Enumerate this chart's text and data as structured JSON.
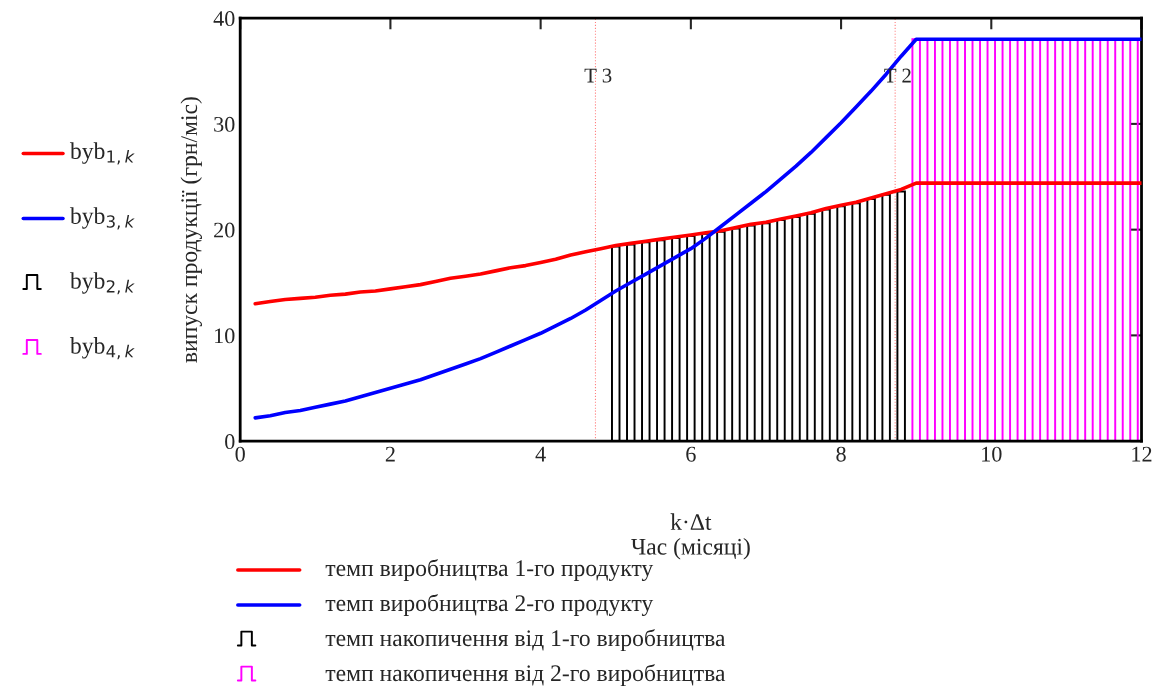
{
  "chart_data": {
    "type": "line",
    "xlabel": "k·Δt\nЧас (місяці)",
    "ylabel": "випуск продукції (грн/міс)",
    "xlim": [
      0,
      12
    ],
    "xticks": [
      0,
      2,
      4,
      6,
      8,
      10,
      12
    ],
    "ylim": [
      0,
      40
    ],
    "yticks": [
      0,
      10,
      20,
      30,
      40
    ],
    "grid": false,
    "legend": "left",
    "marker": "none",
    "line_style": "solid",
    "series": [
      {
        "name": "byb$_{1,k}$",
        "color": "#ff0000",
        "x": [
          0.2,
          0.4,
          0.6,
          0.8,
          1.0,
          1.2,
          1.4,
          1.6,
          1.8,
          2.0,
          2.2,
          2.4,
          2.6,
          2.8,
          3.0,
          3.2,
          3.4,
          3.6,
          3.8,
          4.0,
          4.2,
          4.4,
          4.6,
          4.8,
          5.0,
          5.2,
          5.4,
          5.6,
          5.8,
          6.0,
          6.2,
          6.4,
          6.6,
          6.8,
          7.0,
          7.2,
          7.4,
          7.6,
          7.8,
          8.0,
          8.2,
          8.4,
          8.6,
          8.8,
          9.0,
          12.0
        ],
        "values": [
          13.0,
          13.2,
          13.4,
          13.5,
          13.6,
          13.8,
          13.9,
          14.1,
          14.2,
          14.4,
          14.6,
          14.8,
          15.1,
          15.4,
          15.6,
          15.8,
          16.1,
          16.4,
          16.6,
          16.9,
          17.2,
          17.6,
          17.9,
          18.2,
          18.5,
          18.7,
          18.9,
          19.1,
          19.3,
          19.5,
          19.7,
          19.9,
          20.2,
          20.5,
          20.7,
          21.0,
          21.3,
          21.6,
          22.0,
          22.3,
          22.6,
          23.0,
          23.4,
          23.8,
          24.4,
          24.4
        ]
      },
      {
        "name": "byb$_{3,k}$",
        "color": "#0000ff",
        "x": [
          0.2,
          0.4,
          0.6,
          0.8,
          1.0,
          1.2,
          1.4,
          1.6,
          1.8,
          2.0,
          2.2,
          2.4,
          2.6,
          2.8,
          3.0,
          3.2,
          3.4,
          3.6,
          3.8,
          4.0,
          4.2,
          4.4,
          4.6,
          4.8,
          5.0,
          5.2,
          5.4,
          5.6,
          5.8,
          6.0,
          6.2,
          6.4,
          6.6,
          6.8,
          7.0,
          7.2,
          7.4,
          7.6,
          7.8,
          8.0,
          8.2,
          8.4,
          8.6,
          8.8,
          9.0,
          12.0
        ],
        "values": [
          2.2,
          2.4,
          2.7,
          2.9,
          3.2,
          3.5,
          3.8,
          4.2,
          4.6,
          5.0,
          5.4,
          5.8,
          6.3,
          6.8,
          7.3,
          7.8,
          8.4,
          9.0,
          9.6,
          10.2,
          10.9,
          11.6,
          12.4,
          13.3,
          14.2,
          15.0,
          15.8,
          16.6,
          17.4,
          18.2,
          19.2,
          20.3,
          21.4,
          22.5,
          23.6,
          24.8,
          26.0,
          27.3,
          28.7,
          30.1,
          31.6,
          33.1,
          34.7,
          36.4,
          38.0,
          38.0
        ]
      },
      {
        "name": "byb$_{2,k}$",
        "type": "bar",
        "color": "#000000",
        "x": [
          5.0,
          5.2,
          5.4,
          5.6,
          5.8,
          6.0,
          6.2,
          6.4,
          6.6,
          6.8,
          7.0,
          7.2,
          7.4,
          7.6,
          7.8,
          8.0,
          8.2,
          8.4,
          8.6,
          8.8
        ],
        "values": [
          18.4,
          18.6,
          18.8,
          19.0,
          19.2,
          19.4,
          19.6,
          19.8,
          20.1,
          20.4,
          20.6,
          20.9,
          21.2,
          21.5,
          21.9,
          22.2,
          22.5,
          22.9,
          23.3,
          23.6
        ]
      },
      {
        "name": "byb$_{4,k}$",
        "type": "bar",
        "color": "#ff00ff",
        "x": [
          9.0,
          9.2,
          9.4,
          9.6,
          9.8,
          10.0,
          10.2,
          10.4,
          10.6,
          10.8,
          11.0,
          11.2,
          11.4,
          11.6,
          11.8,
          12.0
        ],
        "values": [
          38,
          38,
          38,
          38,
          38,
          38,
          38,
          38,
          38,
          38,
          38,
          38,
          38,
          38,
          38,
          38
        ]
      }
    ],
    "ref_lines": [
      {
        "axis": "x",
        "value": 4.73,
        "label": "T 3",
        "color": "#ff8080",
        "line_style": "dotted"
      },
      {
        "axis": "x",
        "value": 8.72,
        "label": "T 2",
        "color": "#ff8080",
        "line_style": "dotted"
      }
    ],
    "annotations": [
      "темп виробництва 1-го продукту",
      "темп виробництва 2-го продукту",
      "темп накопичення від 1-го виробництва",
      "темп накопичення від 2-го виробництва"
    ]
  }
}
